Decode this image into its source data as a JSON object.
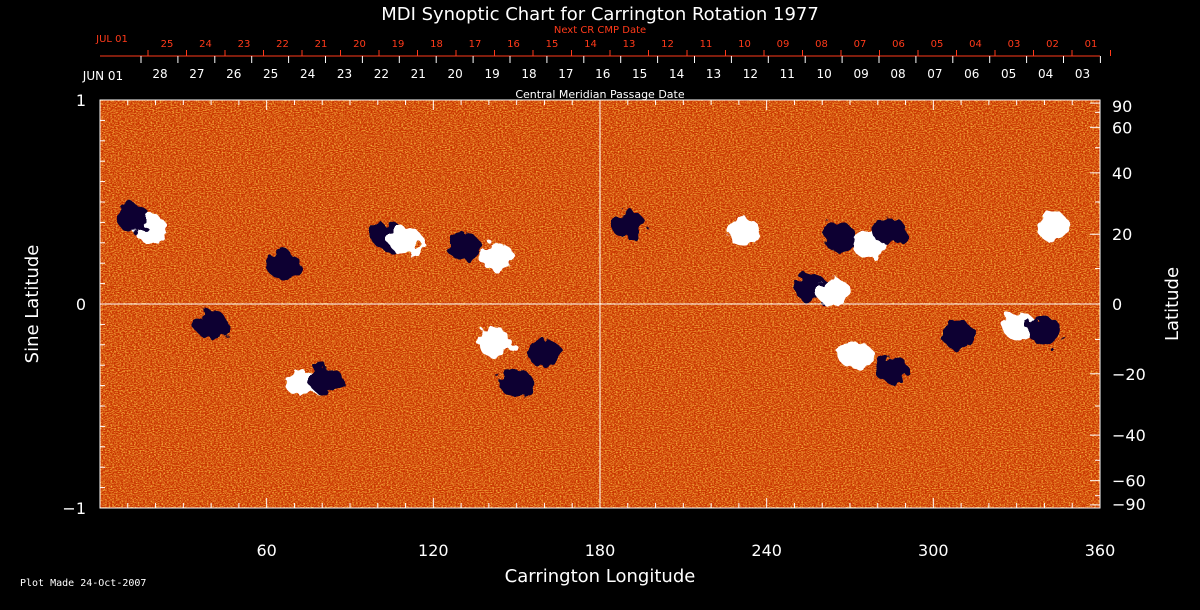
{
  "chart_data": {
    "type": "heatmap",
    "title": "MDI Synoptic Chart for Carrington Rotation 1977",
    "next_cr_label": "Next CR CMP Date",
    "next_month_label": "JUL 01",
    "next_dates": [
      "25",
      "24",
      "23",
      "22",
      "21",
      "20",
      "19",
      "18",
      "17",
      "16",
      "15",
      "14",
      "13",
      "12",
      "11",
      "10",
      "09",
      "08",
      "07",
      "06",
      "05",
      "04",
      "03",
      "02",
      "01"
    ],
    "cmp_label": "Central Meridian Passage Date",
    "cmp_month_label": "JUN 01",
    "cmp_dates": [
      "28",
      "27",
      "26",
      "25",
      "24",
      "23",
      "22",
      "21",
      "20",
      "19",
      "18",
      "17",
      "16",
      "15",
      "14",
      "13",
      "12",
      "11",
      "10",
      "09",
      "08",
      "07",
      "06",
      "05",
      "04",
      "03"
    ],
    "xlabel": "Carrington Longitude",
    "ylabel_left": "Sine Latitude",
    "ylabel_right": "Latitude",
    "xlim": [
      0,
      360
    ],
    "ylim": [
      -1,
      1
    ],
    "x_ticks": [
      "60",
      "120",
      "180",
      "240",
      "300",
      "360"
    ],
    "y_ticks_left": [
      "1",
      "0",
      "−1"
    ],
    "y_ticks_right": [
      "90",
      "60",
      "40",
      "20",
      "0",
      "−20",
      "−40",
      "−60",
      "−90"
    ],
    "grid_lines": {
      "longitude": 180,
      "sine_latitude": 0
    },
    "colors": {
      "background": "#cc3a00",
      "positive": "#ffffff",
      "negative": "#0a0030",
      "annotation": "#ff3a1a"
    },
    "active_regions": [
      {
        "lon": 18,
        "sinlat": 0.37,
        "polarity": "positive"
      },
      {
        "lon": 12,
        "sinlat": 0.42,
        "polarity": "negative"
      },
      {
        "lon": 66,
        "sinlat": 0.19,
        "polarity": "negative"
      },
      {
        "lon": 104,
        "sinlat": 0.33,
        "polarity": "negative"
      },
      {
        "lon": 110,
        "sinlat": 0.31,
        "polarity": "positive"
      },
      {
        "lon": 131,
        "sinlat": 0.28,
        "polarity": "negative"
      },
      {
        "lon": 143,
        "sinlat": 0.23,
        "polarity": "positive"
      },
      {
        "lon": 190,
        "sinlat": 0.39,
        "polarity": "negative"
      },
      {
        "lon": 232,
        "sinlat": 0.35,
        "polarity": "positive"
      },
      {
        "lon": 256,
        "sinlat": 0.08,
        "polarity": "negative"
      },
      {
        "lon": 264,
        "sinlat": 0.06,
        "polarity": "positive"
      },
      {
        "lon": 266,
        "sinlat": 0.33,
        "polarity": "negative"
      },
      {
        "lon": 277,
        "sinlat": 0.29,
        "polarity": "positive"
      },
      {
        "lon": 284,
        "sinlat": 0.36,
        "polarity": "negative"
      },
      {
        "lon": 343,
        "sinlat": 0.38,
        "polarity": "positive"
      },
      {
        "lon": 40,
        "sinlat": -0.1,
        "polarity": "negative"
      },
      {
        "lon": 73,
        "sinlat": -0.39,
        "polarity": "positive"
      },
      {
        "lon": 81,
        "sinlat": -0.37,
        "polarity": "negative"
      },
      {
        "lon": 142,
        "sinlat": -0.19,
        "polarity": "positive"
      },
      {
        "lon": 150,
        "sinlat": -0.39,
        "polarity": "negative"
      },
      {
        "lon": 160,
        "sinlat": -0.24,
        "polarity": "negative"
      },
      {
        "lon": 272,
        "sinlat": -0.25,
        "polarity": "positive"
      },
      {
        "lon": 285,
        "sinlat": -0.32,
        "polarity": "negative"
      },
      {
        "lon": 309,
        "sinlat": -0.15,
        "polarity": "negative"
      },
      {
        "lon": 331,
        "sinlat": -0.11,
        "polarity": "positive"
      },
      {
        "lon": 340,
        "sinlat": -0.13,
        "polarity": "negative"
      }
    ]
  },
  "footer": {
    "plot_made": "Plot Made 24-Oct-2007"
  }
}
